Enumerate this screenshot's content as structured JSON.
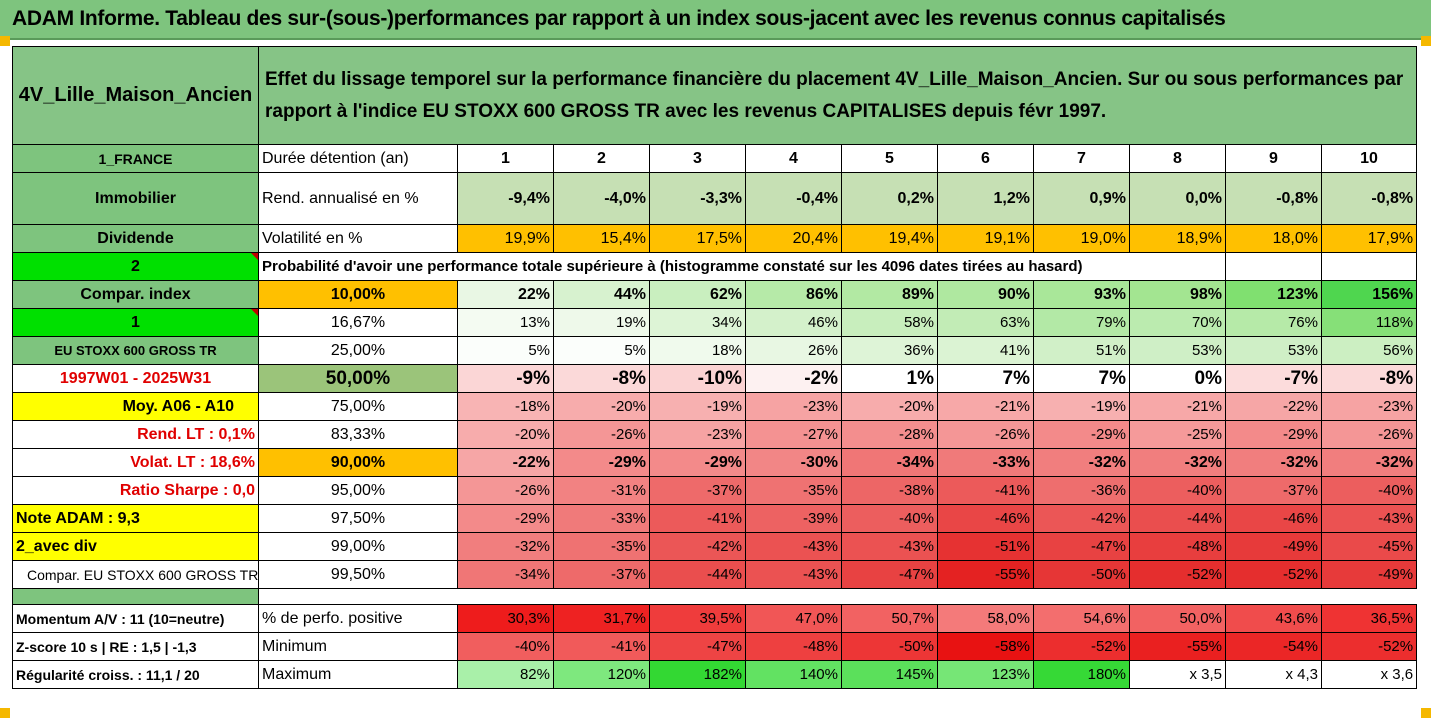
{
  "title": "ADAM Informe. Tableau des sur-(sous-)performances par rapport à un index sous-jacent avec les revenus connus capitalisés",
  "header": {
    "asset": "4V_Lille_Maison_Ancien",
    "description_line1": "Effet du lissage temporel sur la performance financière du placement 4V_Lille_Maison_Ancien. Sur ou sous performances par",
    "description_line2": "rapport à l'indice EU STOXX 600 GROSS TR avec les revenus CAPITALISES depuis févr 1997."
  },
  "left_labels": {
    "country": "1_FRANCE",
    "type": "Immobilier",
    "div": "Dividende",
    "two": "2",
    "compar_index": "Compar. index",
    "one": "1",
    "index_name": "EU STOXX 600 GROSS TR",
    "period": "1997W01 - 2025W31",
    "moy": "Moy. A06 - A10",
    "rend_lt": "Rend. LT :   0,1%",
    "volat_lt": "Volat. LT :   18,6%",
    "sharpe": "Ratio Sharpe :   0,0",
    "note": "Note ADAM : 9,3",
    "avec_div": "2_avec div",
    "compar_full": "Compar. EU STOXX 600 GROSS TR",
    "momentum": "Momentum A/V : 11 (10=neutre)",
    "zscore": "Z-score 10 s  | RE : 1,5  | -1,3",
    "regularite": "Régularité croiss. : 11,1 / 20"
  },
  "row_labels": {
    "duree": "Durée détention (an)",
    "rend": "Rend. annualisé en %",
    "volat": "Volatilité en %",
    "proba": "Probabilité d'avoir une performance totale supérieure à (histogramme constaté sur les 4096 dates tirées au hasard)",
    "pct_pos": "% de perfo. positive",
    "minimum": "Minimum",
    "maximum": "Maximum"
  },
  "years": [
    "1",
    "2",
    "3",
    "4",
    "5",
    "6",
    "7",
    "8",
    "9",
    "10"
  ],
  "rend": [
    "-9,4%",
    "-4,0%",
    "-3,3%",
    "-0,4%",
    "0,2%",
    "1,2%",
    "0,9%",
    "0,0%",
    "-0,8%",
    "-0,8%"
  ],
  "volat": [
    "19,9%",
    "15,4%",
    "17,5%",
    "20,4%",
    "19,4%",
    "19,1%",
    "19,0%",
    "18,9%",
    "18,0%",
    "17,9%"
  ],
  "quantiles": [
    {
      "q": "10,00%",
      "vals": [
        "22%",
        "44%",
        "62%",
        "86%",
        "89%",
        "90%",
        "93%",
        "98%",
        "123%",
        "156%"
      ],
      "colors": [
        "#e9f7e4",
        "#d7f2cf",
        "#c9efbf",
        "#b6eaa8",
        "#b2e9a3",
        "#afe8a0",
        "#a9e799",
        "#a3e591",
        "#80e070",
        "#4fd64f"
      ]
    },
    {
      "q": "16,67%",
      "vals": [
        "13%",
        "19%",
        "34%",
        "46%",
        "58%",
        "63%",
        "79%",
        "70%",
        "76%",
        "118%"
      ],
      "colors": [
        "#f4fbf2",
        "#eef9ea",
        "#ddf4d6",
        "#d4f1cb",
        "#c8eebd",
        "#c2ecb6",
        "#b3e9a6",
        "#bbebaf",
        "#b6eaa8",
        "#86e078"
      ]
    },
    {
      "q": "25,00%",
      "vals": [
        "5%",
        "5%",
        "18%",
        "26%",
        "36%",
        "41%",
        "51%",
        "53%",
        "53%",
        "56%"
      ],
      "colors": [
        "#fbfefb",
        "#fbfefb",
        "#f0faed",
        "#e8f7e3",
        "#def4d7",
        "#dbf3d3",
        "#d1f0c8",
        "#cfefc6",
        "#cfefc6",
        "#ccefc2"
      ]
    },
    {
      "q": "50,00%",
      "vals": [
        "-9%",
        "-8%",
        "-10%",
        "-2%",
        "1%",
        "7%",
        "7%",
        "0%",
        "-7%",
        "-8%"
      ],
      "colors": [
        "#fbd6d6",
        "#fbd9d9",
        "#fbd3d3",
        "#fdf1f1",
        "#ffffff",
        "#ffffff",
        "#ffffff",
        "#ffffff",
        "#fcdcdc",
        "#fbd9d9"
      ]
    },
    {
      "q": "75,00%",
      "vals": [
        "-18%",
        "-20%",
        "-19%",
        "-23%",
        "-20%",
        "-21%",
        "-19%",
        "-21%",
        "-22%",
        "-23%"
      ],
      "colors": [
        "#f8b4b4",
        "#f7acac",
        "#f7b0b0",
        "#f6a3a3",
        "#f7acac",
        "#f7a8a8",
        "#f7b0b0",
        "#f7a8a8",
        "#f6a6a6",
        "#f6a3a3"
      ]
    },
    {
      "q": "83,33%",
      "vals": [
        "-20%",
        "-26%",
        "-23%",
        "-27%",
        "-28%",
        "-26%",
        "-29%",
        "-25%",
        "-29%",
        "-26%"
      ],
      "colors": [
        "#f7acac",
        "#f49696",
        "#f6a3a3",
        "#f49292",
        "#f38e8e",
        "#f49696",
        "#f38a8a",
        "#f59a9a",
        "#f38a8a",
        "#f49696"
      ]
    },
    {
      "q": "90,00%",
      "vals": [
        "-22%",
        "-29%",
        "-29%",
        "-30%",
        "-34%",
        "-33%",
        "-32%",
        "-32%",
        "-32%",
        "-32%"
      ],
      "colors": [
        "#f6a6a6",
        "#f38a8a",
        "#f38a8a",
        "#f28686",
        "#f07676",
        "#f07a7a",
        "#f17e7e",
        "#f17e7e",
        "#f17e7e",
        "#f17e7e"
      ]
    },
    {
      "q": "95,00%",
      "vals": [
        "-26%",
        "-31%",
        "-37%",
        "-35%",
        "-38%",
        "-41%",
        "-36%",
        "-40%",
        "-37%",
        "-40%"
      ],
      "colors": [
        "#f49696",
        "#f28282",
        "#ee6a6a",
        "#ef7272",
        "#ed6666",
        "#ec5a5a",
        "#ee6e6e",
        "#ec5e5e",
        "#ee6a6a",
        "#ec5e5e"
      ]
    },
    {
      "q": "97,50%",
      "vals": [
        "-29%",
        "-33%",
        "-41%",
        "-39%",
        "-40%",
        "-46%",
        "-42%",
        "-44%",
        "-46%",
        "-43%"
      ],
      "colors": [
        "#f38a8a",
        "#f07a7a",
        "#ec5a5a",
        "#ed6262",
        "#ec5e5e",
        "#e94646",
        "#eb5656",
        "#ea4e4e",
        "#e94646",
        "#eb5252"
      ]
    },
    {
      "q": "99,00%",
      "vals": [
        "-32%",
        "-35%",
        "-42%",
        "-43%",
        "-43%",
        "-51%",
        "-47%",
        "-48%",
        "-49%",
        "-45%"
      ],
      "colors": [
        "#f17e7e",
        "#ef7272",
        "#eb5656",
        "#eb5252",
        "#eb5252",
        "#e63232",
        "#e84242",
        "#e83e3e",
        "#e73a3a",
        "#ea4a4a"
      ]
    },
    {
      "q": "99,50%",
      "vals": [
        "-34%",
        "-37%",
        "-44%",
        "-43%",
        "-47%",
        "-55%",
        "-50%",
        "-52%",
        "-52%",
        "-49%"
      ],
      "colors": [
        "#f07676",
        "#ee6a6a",
        "#ea4e4e",
        "#eb5252",
        "#e84242",
        "#e42222",
        "#e63636",
        "#e52e2e",
        "#e52e2e",
        "#e73a3a"
      ]
    }
  ],
  "pct_pos": {
    "vals": [
      "30,3%",
      "31,7%",
      "39,5%",
      "47,0%",
      "50,7%",
      "58,0%",
      "54,6%",
      "50,0%",
      "43,6%",
      "36,5%"
    ],
    "colors": [
      "#ee1c1c",
      "#ee2222",
      "#ef3c3c",
      "#f15656",
      "#f26262",
      "#f47a7a",
      "#f36e6e",
      "#f26262",
      "#f04c4c",
      "#ef3333"
    ]
  },
  "minimum": {
    "vals": [
      "-40%",
      "-41%",
      "-47%",
      "-48%",
      "-50%",
      "-58%",
      "-52%",
      "-55%",
      "-54%",
      "-52%"
    ],
    "colors": [
      "#f15e5e",
      "#f15a5a",
      "#ee4444",
      "#ee4040",
      "#ed3636",
      "#e81212",
      "#ec2e2e",
      "#ea2020",
      "#eb2626",
      "#ec2e2e"
    ]
  },
  "maximum": {
    "vals": [
      "82%",
      "120%",
      "182%",
      "140%",
      "145%",
      "123%",
      "180%",
      "x 3,5",
      "x 4,3",
      "x 3,6"
    ],
    "colors": [
      "#a9f0a9",
      "#7ee87e",
      "#33d833",
      "#62e262",
      "#5be05b",
      "#76e676",
      "#36d936",
      "#ffffff",
      "#ffffff",
      "#ffffff"
    ]
  }
}
